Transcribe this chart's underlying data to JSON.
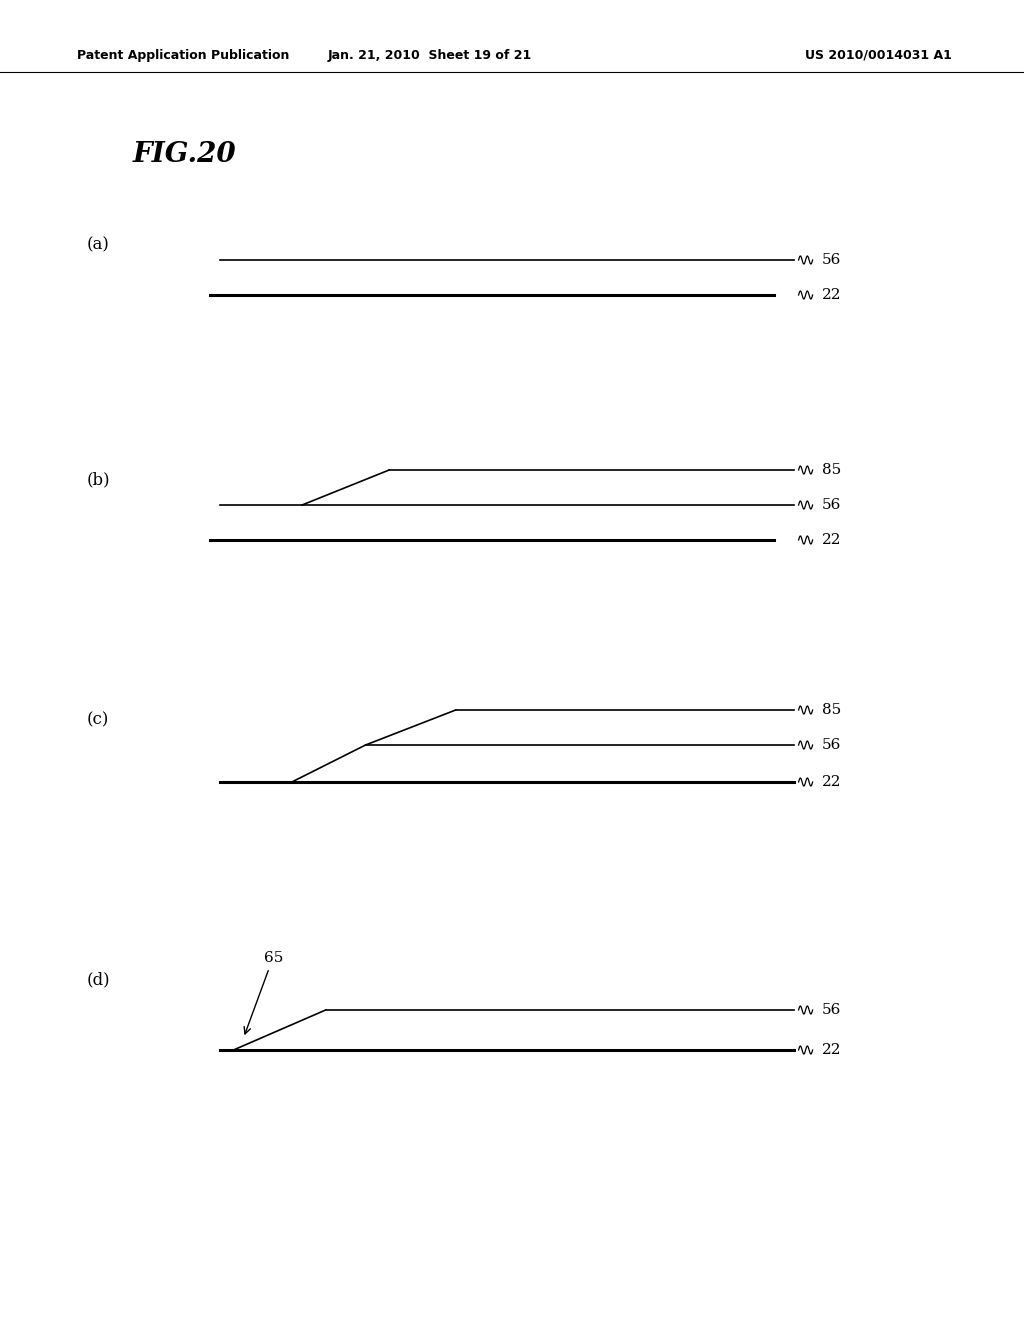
{
  "header_left": "Patent Application Publication",
  "header_mid": "Jan. 21, 2010  Sheet 19 of 21",
  "header_right": "US 2010/0014031 A1",
  "fig_title": "FIG.20",
  "background_color": "#ffffff",
  "line_color": "#000000",
  "header_fontsize": 9,
  "fig_title_fontsize": 20,
  "label_fontsize": 12,
  "ref_fontsize": 11
}
